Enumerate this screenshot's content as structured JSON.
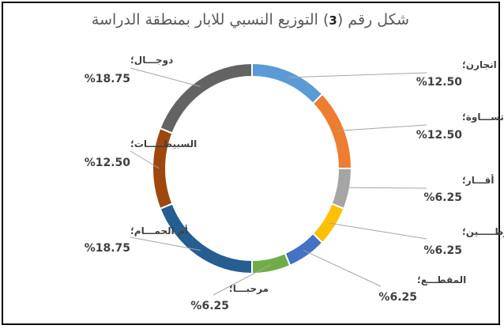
{
  "chart_data": {
    "type": "pie",
    "style": "doughnut",
    "title_prefix": "شكل رقم (",
    "title_number": "3",
    "title_suffix": ") التوزيع النسبي للابار بمنطقة الدراسة",
    "unit": "%",
    "slices": [
      {
        "label": "انجارن؛",
        "value": 12.5,
        "display": "%12.50",
        "color": "#5B9BD5"
      },
      {
        "label": "تســـاوة؛",
        "value": 12.5,
        "display": "%12.50",
        "color": "#ED7D31"
      },
      {
        "label": "أقـــار؛",
        "value": 6.25,
        "display": "%6.25",
        "color": "#A5A5A5"
      },
      {
        "label": "تقروطـــــين؛",
        "value": 6.25,
        "display": "%6.25",
        "color": "#FFC000"
      },
      {
        "label": "المقطـــع؛",
        "value": 6.25,
        "display": "%6.25",
        "color": "#4472C4"
      },
      {
        "label": "مرحبـــا؛",
        "value": 6.25,
        "display": "%6.25",
        "color": "#70AD47"
      },
      {
        "label": "أم الحمـــام؛",
        "value": 18.75,
        "display": "%18.75",
        "color": "#255E91"
      },
      {
        "label": "السبيطـــــات؛",
        "value": 12.5,
        "display": "%12.50",
        "color": "#9E480E"
      },
      {
        "label": "دوجـــال؛",
        "value": 18.75,
        "display": "%18.75",
        "color": "#636363"
      }
    ]
  }
}
